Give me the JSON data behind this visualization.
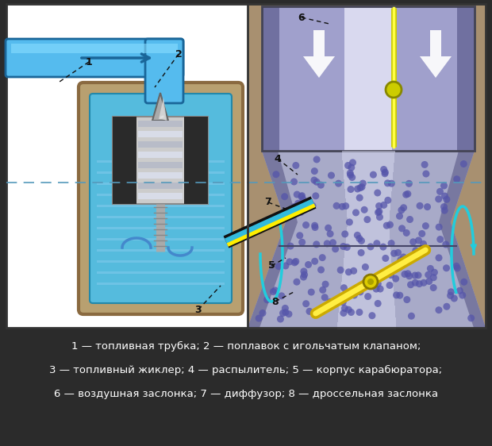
{
  "bg_color": "#2b2b2b",
  "white_area_bg": "#ffffff",
  "caption_line1": "1 — топливная трубка; 2 — поплавок с игольчатым клапаном;",
  "caption_line2": "3 — топливный жиклер; 4 — распылитель; 5 — корпус карабюратора;",
  "caption_line3": "6 — воздушная заслонка; 7 — диффузор; 8 — дроссельная заслонка"
}
